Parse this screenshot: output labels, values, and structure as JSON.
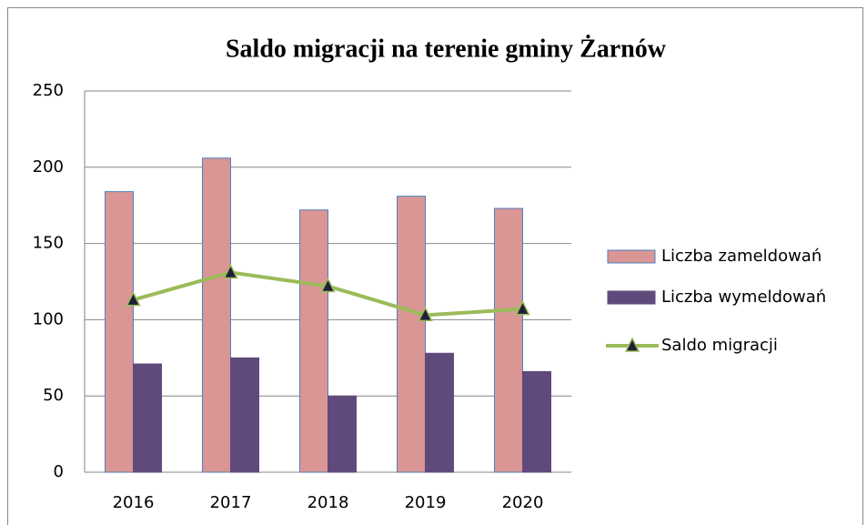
{
  "chart_data": {
    "type": "bar",
    "title": "Saldo migracji na terenie gminy Żarnów",
    "categories": [
      "2016",
      "2017",
      "2018",
      "2019",
      "2020"
    ],
    "series": [
      {
        "name": "Liczba zameldowań",
        "color": "#d99694",
        "values": [
          184,
          206,
          172,
          181,
          173
        ]
      },
      {
        "name": "Liczba wymeldowań",
        "color": "#604a7b",
        "values": [
          71,
          75,
          50,
          78,
          66
        ]
      },
      {
        "name": "Saldo migracji",
        "color": "#9bbb59",
        "type": "line",
        "values": [
          113,
          131,
          122,
          103,
          107
        ]
      }
    ],
    "ylim": [
      0,
      250
    ],
    "yticks": [
      0,
      50,
      100,
      150,
      200,
      250
    ],
    "grid": true,
    "legend": "right"
  }
}
